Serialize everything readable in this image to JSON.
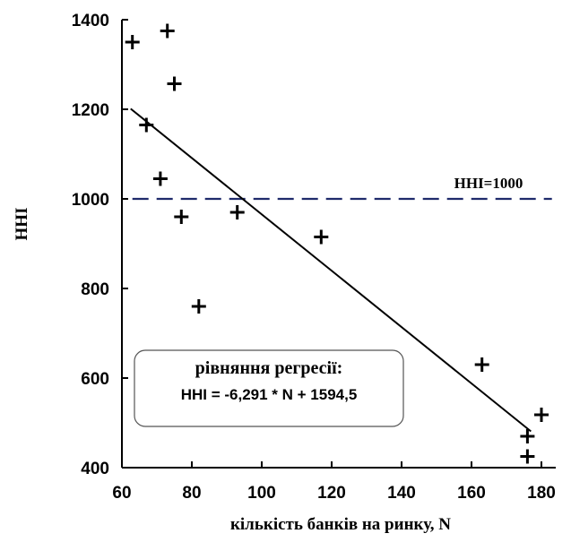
{
  "chart_data": {
    "type": "scatter",
    "xlabel": "кількість банків на ринку, N",
    "ylabel": "HHI",
    "xlim": [
      60,
      180
    ],
    "ylim": [
      400,
      1400
    ],
    "x_ticks": [
      60,
      80,
      100,
      120,
      140,
      160,
      180
    ],
    "y_ticks": [
      400,
      600,
      800,
      1000,
      1200,
      1400
    ],
    "points": [
      {
        "x": 63,
        "y": 1350
      },
      {
        "x": 73,
        "y": 1375
      },
      {
        "x": 75,
        "y": 1257
      },
      {
        "x": 67,
        "y": 1165
      },
      {
        "x": 71,
        "y": 1045
      },
      {
        "x": 77,
        "y": 960
      },
      {
        "x": 93,
        "y": 970
      },
      {
        "x": 117,
        "y": 915
      },
      {
        "x": 82,
        "y": 760
      },
      {
        "x": 163,
        "y": 630
      },
      {
        "x": 180,
        "y": 518
      },
      {
        "x": 176,
        "y": 470
      },
      {
        "x": 176,
        "y": 425
      }
    ],
    "regression": {
      "slope": -6.291,
      "intercept": 1594.5,
      "x_from": 62.5,
      "x_to": 177
    },
    "reference_line": {
      "y": 1000,
      "x_from": 63,
      "x_to": 183,
      "label": "HHI=1000",
      "color": "#1f2a6b"
    },
    "equation_box": {
      "title": "рівняння регресії:",
      "text": "HHI = -6,291 * N + 1594,5"
    },
    "grid": false,
    "marker": "plus"
  }
}
